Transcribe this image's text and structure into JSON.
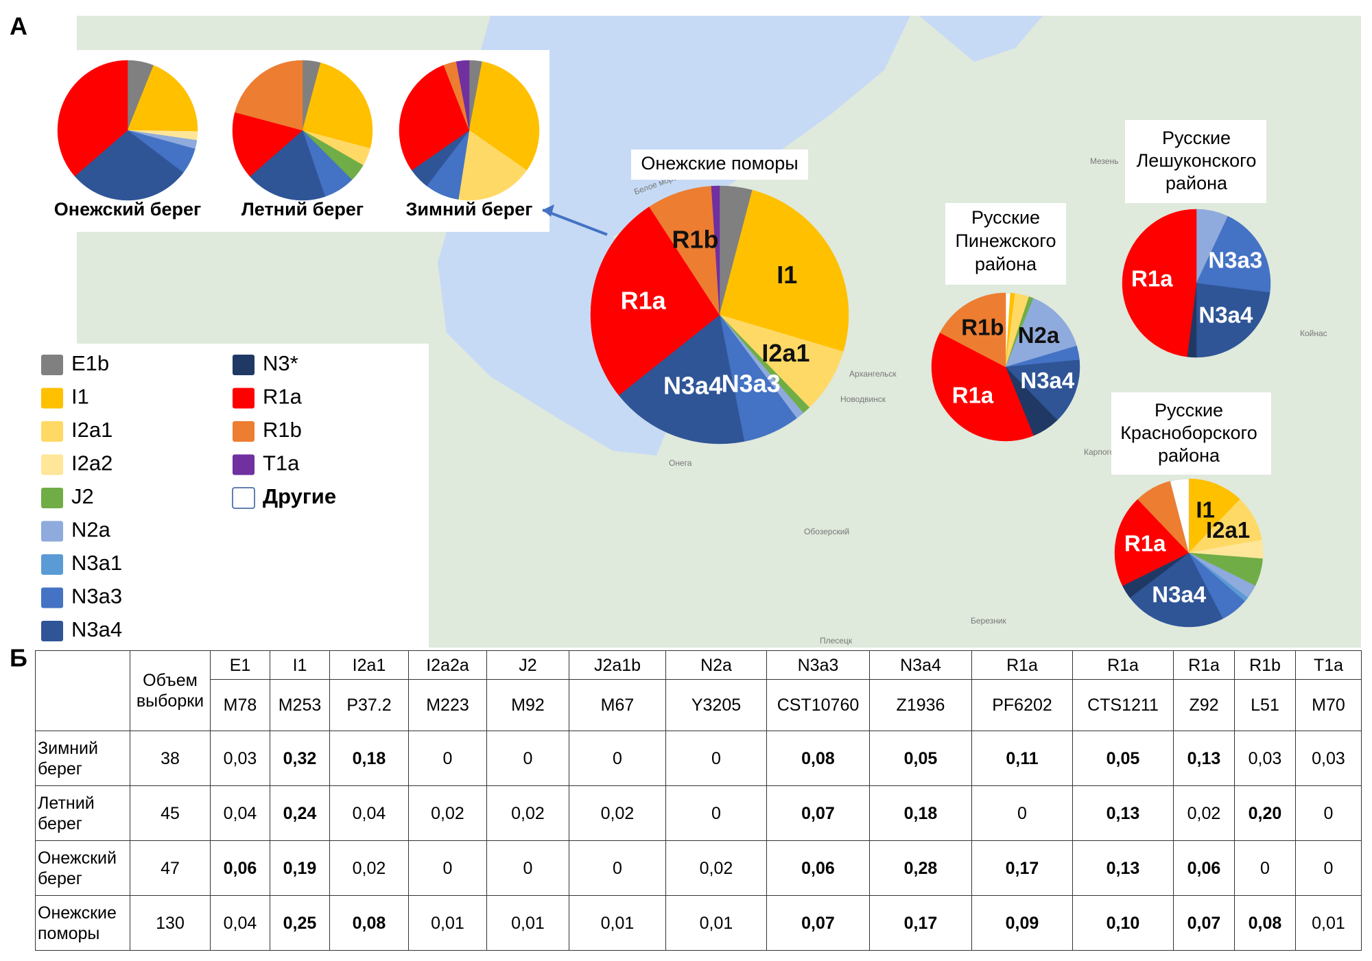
{
  "panel_a": {
    "label": "А",
    "legend": [
      {
        "name": "E1b",
        "color": "#808080"
      },
      {
        "name": "I1",
        "color": "#ffc000"
      },
      {
        "name": "I2a1",
        "color": "#ffd966"
      },
      {
        "name": "I2a2",
        "color": "#ffe699"
      },
      {
        "name": "J2",
        "color": "#70ad47"
      },
      {
        "name": "N2a",
        "color": "#8faadc"
      },
      {
        "name": "N3a1",
        "color": "#5b9bd5"
      },
      {
        "name": "N3a3",
        "color": "#4472c4"
      },
      {
        "name": "N3a4",
        "color": "#2f5597"
      },
      {
        "name": "N3*",
        "color": "#203864"
      },
      {
        "name": "R1a",
        "color": "#ff0000"
      },
      {
        "name": "R1b",
        "color": "#ed7d31"
      },
      {
        "name": "T1a",
        "color": "#7030a0"
      },
      {
        "name": "Другие",
        "color": "#ffffff"
      }
    ],
    "pies": [
      {
        "title": [
          "Онежский берег"
        ],
        "slices": [
          {
            "haplogroup": "E1b",
            "value": 6
          },
          {
            "haplogroup": "I1",
            "value": 19
          },
          {
            "haplogroup": "I2a2",
            "value": 2
          },
          {
            "haplogroup": "N2a",
            "value": 2
          },
          {
            "haplogroup": "N3a3",
            "value": 6
          },
          {
            "haplogroup": "N3a4",
            "value": 28
          },
          {
            "haplogroup": "R1a",
            "value": 36
          }
        ]
      },
      {
        "title": [
          "Летний берег"
        ],
        "slices": [
          {
            "haplogroup": "E1b",
            "value": 4
          },
          {
            "haplogroup": "I1",
            "value": 24
          },
          {
            "haplogroup": "I2a1",
            "value": 4
          },
          {
            "haplogroup": "J2",
            "value": 4
          },
          {
            "haplogroup": "N3a3",
            "value": 7
          },
          {
            "haplogroup": "N3a4",
            "value": 18
          },
          {
            "haplogroup": "R1a",
            "value": 15
          },
          {
            "haplogroup": "R1b",
            "value": 20
          }
        ]
      },
      {
        "title": [
          "Зимний берег"
        ],
        "slices": [
          {
            "haplogroup": "E1b",
            "value": 3
          },
          {
            "haplogroup": "I1",
            "value": 32
          },
          {
            "haplogroup": "I2a1",
            "value": 18
          },
          {
            "haplogroup": "N3a3",
            "value": 8
          },
          {
            "haplogroup": "N3a4",
            "value": 5
          },
          {
            "haplogroup": "R1a",
            "value": 29
          },
          {
            "haplogroup": "R1b",
            "value": 3
          },
          {
            "haplogroup": "T1a",
            "value": 3
          }
        ]
      },
      {
        "title": [
          "Онежские поморы"
        ],
        "slices": [
          {
            "haplogroup": "E1b",
            "value": 4
          },
          {
            "haplogroup": "I1",
            "value": 25,
            "labeled": true
          },
          {
            "haplogroup": "I2a1",
            "value": 8,
            "labeled": true
          },
          {
            "haplogroup": "J2",
            "value": 1
          },
          {
            "haplogroup": "N2a",
            "value": 1
          },
          {
            "haplogroup": "N3a3",
            "value": 7,
            "labeled": true
          },
          {
            "haplogroup": "N3a4",
            "value": 17,
            "labeled": true
          },
          {
            "haplogroup": "R1a",
            "value": 26,
            "labeled": true
          },
          {
            "haplogroup": "R1b",
            "value": 8,
            "labeled": true
          },
          {
            "haplogroup": "T1a",
            "value": 1
          }
        ]
      },
      {
        "title": [
          "Русские",
          "Пинежского",
          "района"
        ],
        "slices": [
          {
            "haplogroup": "Другие",
            "value": 1
          },
          {
            "haplogroup": "I1",
            "value": 1
          },
          {
            "haplogroup": "I2a1",
            "value": 3
          },
          {
            "haplogroup": "J2",
            "value": 1
          },
          {
            "haplogroup": "N2a",
            "value": 14,
            "labeled": true
          },
          {
            "haplogroup": "N3a3",
            "value": 3
          },
          {
            "haplogroup": "N3a4",
            "value": 14,
            "labeled": true
          },
          {
            "haplogroup": "N3*",
            "value": 6
          },
          {
            "haplogroup": "R1a",
            "value": 38,
            "labeled": true
          },
          {
            "haplogroup": "R1b",
            "value": 17,
            "labeled": true
          }
        ]
      },
      {
        "title": [
          "Русские",
          "Лешуконского",
          "района"
        ],
        "slices": [
          {
            "haplogroup": "N2a",
            "value": 7
          },
          {
            "haplogroup": "N3a3",
            "value": 20,
            "labeled": true
          },
          {
            "haplogroup": "N3a4",
            "value": 23,
            "labeled": true
          },
          {
            "haplogroup": "N3*",
            "value": 2
          },
          {
            "haplogroup": "R1a",
            "value": 48,
            "labeled": true
          }
        ]
      },
      {
        "title": [
          "Русские",
          "Красноборского",
          "района"
        ],
        "slices": [
          {
            "haplogroup": "I1",
            "value": 12,
            "labeled": true
          },
          {
            "haplogroup": "I2a1",
            "value": 10,
            "labeled": true
          },
          {
            "haplogroup": "I2a2",
            "value": 4
          },
          {
            "haplogroup": "J2",
            "value": 6
          },
          {
            "haplogroup": "N2a",
            "value": 3
          },
          {
            "haplogroup": "N3a1",
            "value": 1
          },
          {
            "haplogroup": "N3a3",
            "value": 6
          },
          {
            "haplogroup": "N3a4",
            "value": 22,
            "labeled": true
          },
          {
            "haplogroup": "N3*",
            "value": 3
          },
          {
            "haplogroup": "R1a",
            "value": 20,
            "labeled": true
          },
          {
            "haplogroup": "R1b",
            "value": 8
          },
          {
            "haplogroup": "Другие",
            "value": 4
          }
        ]
      }
    ],
    "map_labels": [
      "Белое море",
      "Мезень",
      "Архангельск",
      "Новодвинск",
      "Онега",
      "Карпогоры",
      "Обозерский",
      "Плесецк",
      "Березник",
      "Койнас"
    ]
  },
  "panel_b": {
    "label": "Б",
    "sample_size": "Объем выборки",
    "markers": [
      {
        "haplogroup": "E1",
        "snp": "M78"
      },
      {
        "haplogroup": "I1",
        "snp": "M253"
      },
      {
        "haplogroup": "I2a1",
        "snp": "P37.2"
      },
      {
        "haplogroup": "I2a2a",
        "snp": "M223"
      },
      {
        "haplogroup": "J2",
        "snp": "M92"
      },
      {
        "haplogroup": "J2a1b",
        "snp": "M67"
      },
      {
        "haplogroup": "N2a",
        "snp": "Y3205"
      },
      {
        "haplogroup": "N3a3",
        "snp": "CST10760"
      },
      {
        "haplogroup": "N3a4",
        "snp": "Z1936"
      },
      {
        "haplogroup": "R1a",
        "snp": "PF6202"
      },
      {
        "haplogroup": "R1a",
        "snp": "CTS1211"
      },
      {
        "haplogroup": "R1a",
        "snp": "Z92"
      },
      {
        "haplogroup": "R1b",
        "snp": "L51"
      },
      {
        "haplogroup": "T1a",
        "snp": "M70"
      }
    ],
    "rows": [
      {
        "population": "Зимний берег",
        "n": 38,
        "cells": [
          {
            "value": "0,03",
            "bold": false
          },
          {
            "value": "0,32",
            "bold": true
          },
          {
            "value": "0,18",
            "bold": true
          },
          {
            "value": "0",
            "bold": false
          },
          {
            "value": "0",
            "bold": false
          },
          {
            "value": "0",
            "bold": false
          },
          {
            "value": "0",
            "bold": false
          },
          {
            "value": "0,08",
            "bold": true
          },
          {
            "value": "0,05",
            "bold": true
          },
          {
            "value": "0,11",
            "bold": true
          },
          {
            "value": "0,05",
            "bold": true
          },
          {
            "value": "0,13",
            "bold": true
          },
          {
            "value": "0,03",
            "bold": false
          },
          {
            "value": "0,03",
            "bold": false
          }
        ]
      },
      {
        "population": "Летний берег",
        "n": 45,
        "cells": [
          {
            "value": "0,04",
            "bold": false
          },
          {
            "value": "0,24",
            "bold": true
          },
          {
            "value": "0,04",
            "bold": false
          },
          {
            "value": "0,02",
            "bold": false
          },
          {
            "value": "0,02",
            "bold": false
          },
          {
            "value": "0,02",
            "bold": false
          },
          {
            "value": "0",
            "bold": false
          },
          {
            "value": "0,07",
            "bold": true
          },
          {
            "value": "0,18",
            "bold": true
          },
          {
            "value": "0",
            "bold": false
          },
          {
            "value": "0,13",
            "bold": true
          },
          {
            "value": "0,02",
            "bold": false
          },
          {
            "value": "0,20",
            "bold": true
          },
          {
            "value": "0",
            "bold": false
          }
        ]
      },
      {
        "population": "Онежский берег",
        "n": 47,
        "cells": [
          {
            "value": "0,06",
            "bold": true
          },
          {
            "value": "0,19",
            "bold": true
          },
          {
            "value": "0,02",
            "bold": false
          },
          {
            "value": "0",
            "bold": false
          },
          {
            "value": "0",
            "bold": false
          },
          {
            "value": "0",
            "bold": false
          },
          {
            "value": "0,02",
            "bold": false
          },
          {
            "value": "0,06",
            "bold": true
          },
          {
            "value": "0,28",
            "bold": true
          },
          {
            "value": "0,17",
            "bold": true
          },
          {
            "value": "0,13",
            "bold": true
          },
          {
            "value": "0,06",
            "bold": true
          },
          {
            "value": "0",
            "bold": false
          },
          {
            "value": "0",
            "bold": false
          }
        ]
      },
      {
        "population": "Онежские поморы",
        "n": 130,
        "cells": [
          {
            "value": "0,04",
            "bold": false
          },
          {
            "value": "0,25",
            "bold": true
          },
          {
            "value": "0,08",
            "bold": true
          },
          {
            "value": "0,01",
            "bold": false
          },
          {
            "value": "0,01",
            "bold": false
          },
          {
            "value": "0,01",
            "bold": false
          },
          {
            "value": "0,01",
            "bold": false
          },
          {
            "value": "0,07",
            "bold": true
          },
          {
            "value": "0,17",
            "bold": true
          },
          {
            "value": "0,09",
            "bold": true
          },
          {
            "value": "0,10",
            "bold": true
          },
          {
            "value": "0,07",
            "bold": true
          },
          {
            "value": "0,08",
            "bold": true
          },
          {
            "value": "0,01",
            "bold": false
          }
        ]
      }
    ]
  }
}
